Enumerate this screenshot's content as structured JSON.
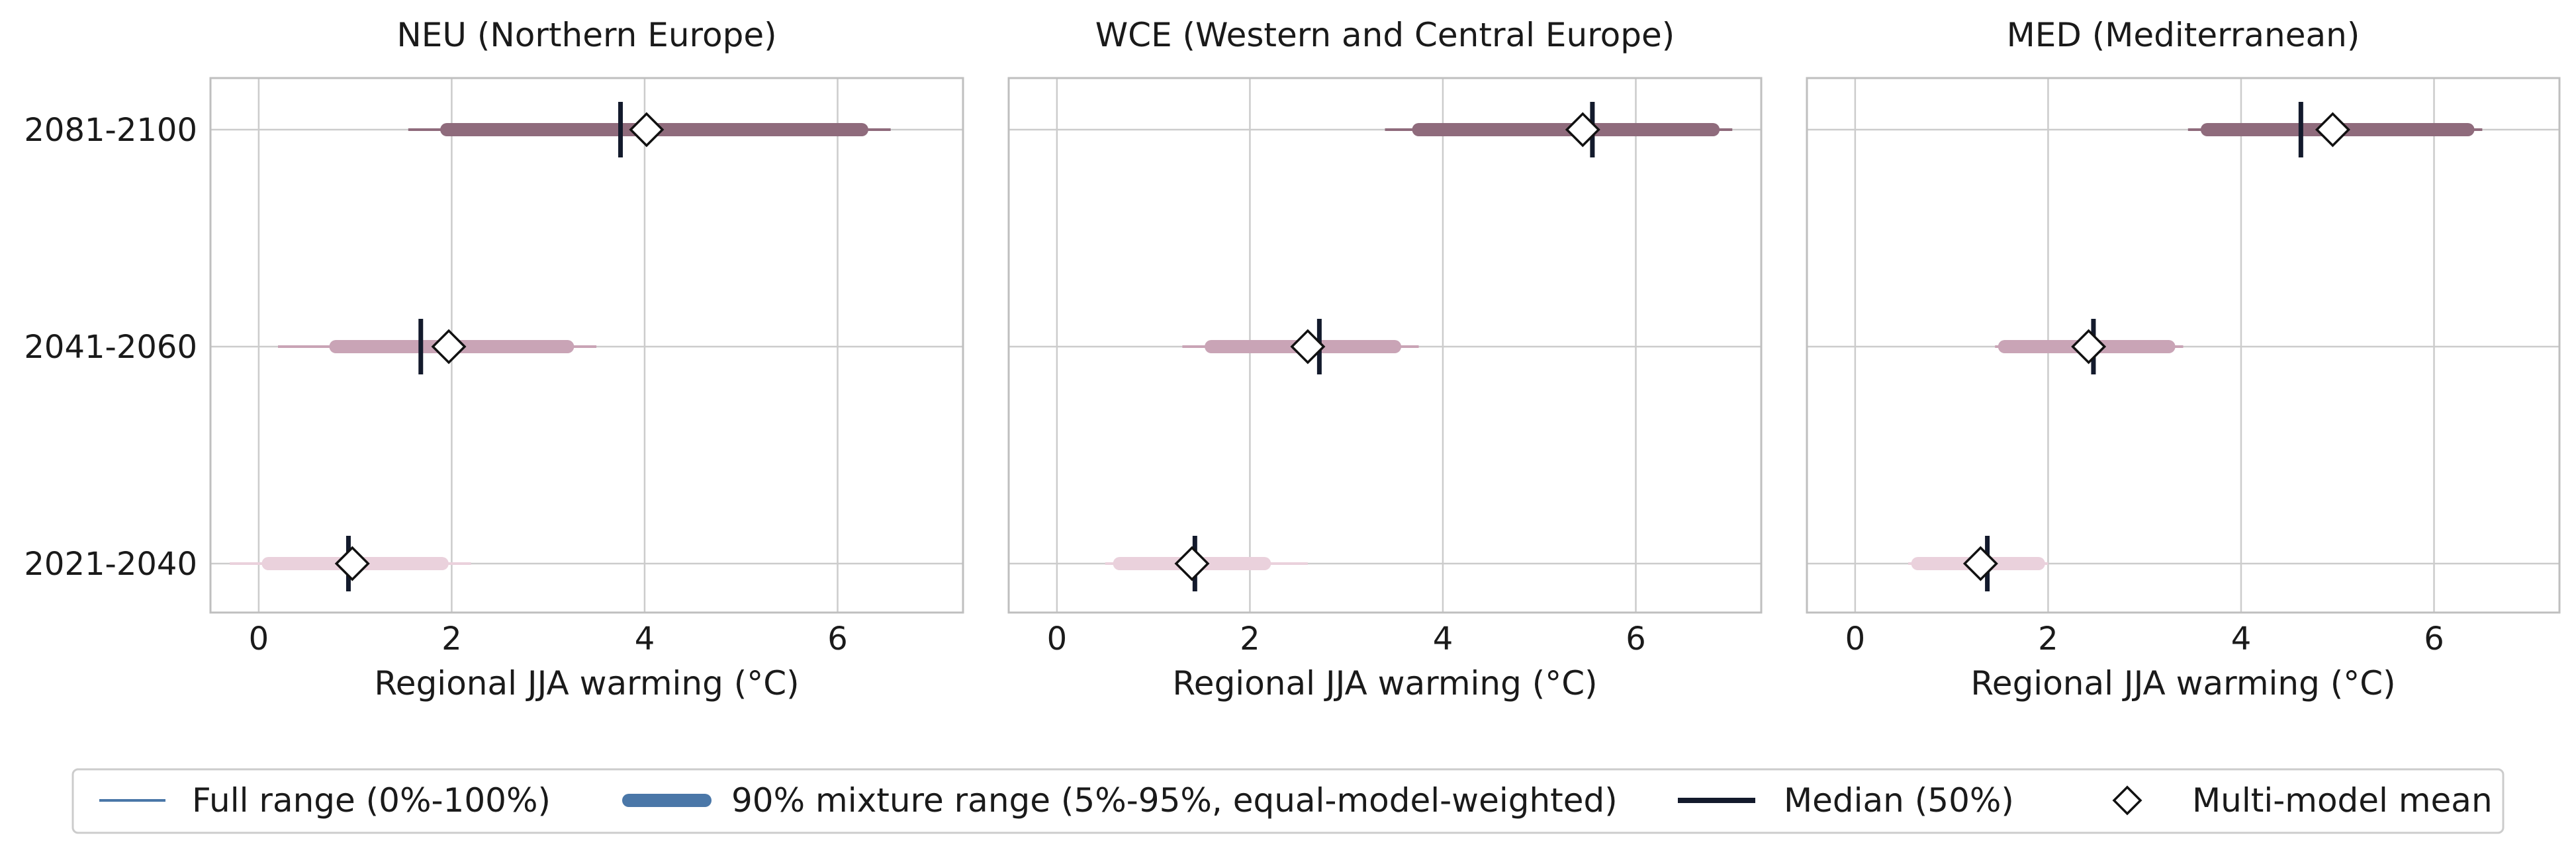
{
  "chart_data": {
    "type": "range-plot",
    "periods": [
      "2021-2040",
      "2041-2060",
      "2081-2100"
    ],
    "xlim": [
      -0.5,
      7.3
    ],
    "xticks": [
      0,
      2,
      4,
      6
    ],
    "grid": true,
    "legend": {
      "placement": "bottom",
      "entries": [
        {
          "key": "full",
          "label": "Full range (0%-100%)"
        },
        {
          "key": "mix",
          "label": "90% mixture range (5%-95%, equal-model-weighted)"
        },
        {
          "key": "median",
          "label": "Median (50%)"
        },
        {
          "key": "mean",
          "label": "Multi-model mean"
        }
      ]
    },
    "colors": {
      "2021-2040": "#ead1dc",
      "2041-2060": "#c9a4b6",
      "2081-2100": "#8f6b7c",
      "median": "#131a2c",
      "legend_line": "#4a77a8",
      "grid": "#cccccc",
      "frame": "#bfbfbf"
    },
    "panels": [
      {
        "title": "NEU (Northern Europe)",
        "xlabel": "Regional JJA warming (°C)",
        "ranges": [
          {
            "period": "2021-2040",
            "full": [
              -0.3,
              2.2
            ],
            "p5_95": [
              0.1,
              1.9
            ],
            "median": 0.93,
            "mean": 0.97
          },
          {
            "period": "2041-2060",
            "full": [
              0.2,
              3.5
            ],
            "p5_95": [
              0.8,
              3.2
            ],
            "median": 1.68,
            "mean": 1.97
          },
          {
            "period": "2081-2100",
            "full": [
              1.55,
              6.55
            ],
            "p5_95": [
              1.95,
              6.25
            ],
            "median": 3.75,
            "mean": 4.02
          }
        ]
      },
      {
        "title": "WCE (Western and Central Europe)",
        "xlabel": "Regional JJA warming (°C)",
        "ranges": [
          {
            "period": "2021-2040",
            "full": [
              0.5,
              2.6
            ],
            "p5_95": [
              0.65,
              2.15
            ],
            "median": 1.43,
            "mean": 1.4
          },
          {
            "period": "2041-2060",
            "full": [
              1.3,
              3.75
            ],
            "p5_95": [
              1.6,
              3.5
            ],
            "median": 2.72,
            "mean": 2.6
          },
          {
            "period": "2081-2100",
            "full": [
              3.4,
              7.0
            ],
            "p5_95": [
              3.75,
              6.8
            ],
            "median": 5.55,
            "mean": 5.45
          }
        ]
      },
      {
        "title": "MED (Mediterranean)",
        "xlabel": "Regional JJA warming (°C)",
        "ranges": [
          {
            "period": "2021-2040",
            "full": [
              0.55,
              2.0
            ],
            "p5_95": [
              0.65,
              1.9
            ],
            "median": 1.37,
            "mean": 1.3
          },
          {
            "period": "2041-2060",
            "full": [
              1.45,
              3.4
            ],
            "p5_95": [
              1.55,
              3.25
            ],
            "median": 2.47,
            "mean": 2.42
          },
          {
            "period": "2081-2100",
            "full": [
              3.45,
              6.5
            ],
            "p5_95": [
              3.65,
              6.35
            ],
            "median": 4.62,
            "mean": 4.95
          }
        ]
      }
    ]
  }
}
